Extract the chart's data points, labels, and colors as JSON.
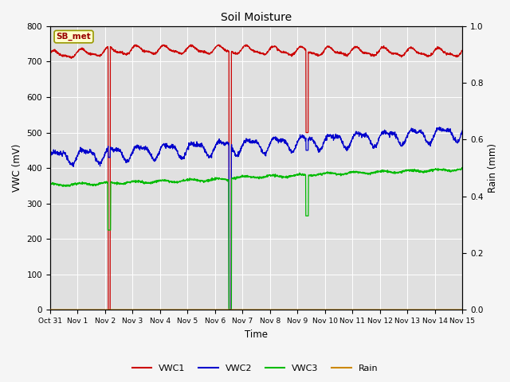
{
  "title": "Soil Moisture",
  "xlabel": "Time",
  "ylabel_left": "VWC (mV)",
  "ylabel_right": "Rain (mm)",
  "ylim_left": [
    0,
    800
  ],
  "ylim_right": [
    0.0,
    1.0
  ],
  "yticks_left": [
    0,
    100,
    200,
    300,
    400,
    500,
    600,
    700,
    800
  ],
  "yticks_right": [
    0.0,
    0.2,
    0.4,
    0.6,
    0.8,
    1.0
  ],
  "x_tick_labels": [
    "Oct 31",
    "Nov 1",
    "Nov 2",
    "Nov 3",
    "Nov 4",
    "Nov 5",
    "Nov 6",
    "Nov 7",
    "Nov 8",
    "Nov 9",
    "Nov 10",
    "Nov 11",
    "Nov 12",
    "Nov 13",
    "Nov 14",
    "Nov 15"
  ],
  "plot_bg": "#e0e0e0",
  "fig_bg": "#f5f5f5",
  "grid_color": "#ffffff",
  "annotation_text": "SB_met",
  "annotation_box_color": "#ffffcc",
  "annotation_border_color": "#999900",
  "colors": {
    "VWC1": "#cc0000",
    "VWC2": "#0000cc",
    "VWC3": "#00bb00",
    "Rain": "#cc8800"
  },
  "vwc1_base": 718,
  "vwc2_base": 430,
  "vwc3_base": 352,
  "spike1_day": 2.15,
  "spike2_day": 6.55,
  "spike3_day": 9.35,
  "spike_red_mins": [
    0,
    0,
    500
  ],
  "spike_blue_mins": [
    430,
    0,
    450
  ],
  "spike_green_mins": [
    225,
    0,
    265
  ]
}
